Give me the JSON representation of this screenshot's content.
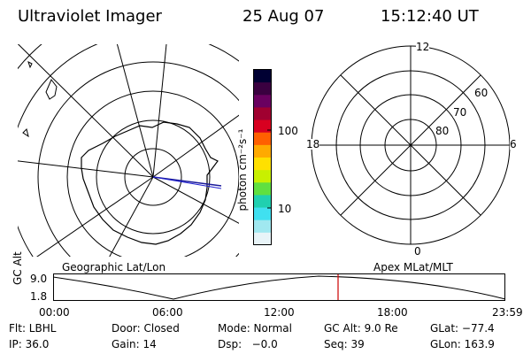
{
  "header": {
    "title": "Ultraviolet Imager",
    "date": "25 Aug 07",
    "time": "15:12:40 UT"
  },
  "colorbar": {
    "unit_label": "photon cm⁻²s⁻¹",
    "ticks": [
      "100",
      "10"
    ],
    "colors": [
      "#000033",
      "#3a0040",
      "#6a0060",
      "#a00030",
      "#d80020",
      "#ff6000",
      "#ffaa00",
      "#ffe000",
      "#c8f000",
      "#60e040",
      "#20d0b0",
      "#40e0f0",
      "#a0e8f0",
      "#e8f4f8"
    ]
  },
  "geo_map": {
    "label": "Geographic Lat/Lon"
  },
  "polar_plot": {
    "label": "Apex MLat/MLT",
    "mlt_labels": {
      "top": "12",
      "left": "18",
      "right": "6",
      "bottom": "0"
    },
    "lat_labels": [
      "60",
      "70",
      "80"
    ]
  },
  "altitude_plot": {
    "ylabel": "GC Alt",
    "yticks": [
      "9.0",
      "1.8"
    ],
    "xticks": [
      "00:00",
      "06:00",
      "12:00",
      "18:00",
      "23:59"
    ],
    "current_time_marker_color": "#cc0000"
  },
  "info": {
    "row1": {
      "flt": "Flt: LBHL",
      "door": "Door: Closed",
      "mode": "Mode: Normal",
      "gcalt": "GC Alt: 9.0 Re",
      "glat": "GLat: −77.4"
    },
    "row2": {
      "ip": "IP: 36.0",
      "gain": "Gain: 14",
      "dsp": "Dsp:   −0.0",
      "seq": "Seq: 39",
      "glon": "GLon: 163.9"
    }
  }
}
